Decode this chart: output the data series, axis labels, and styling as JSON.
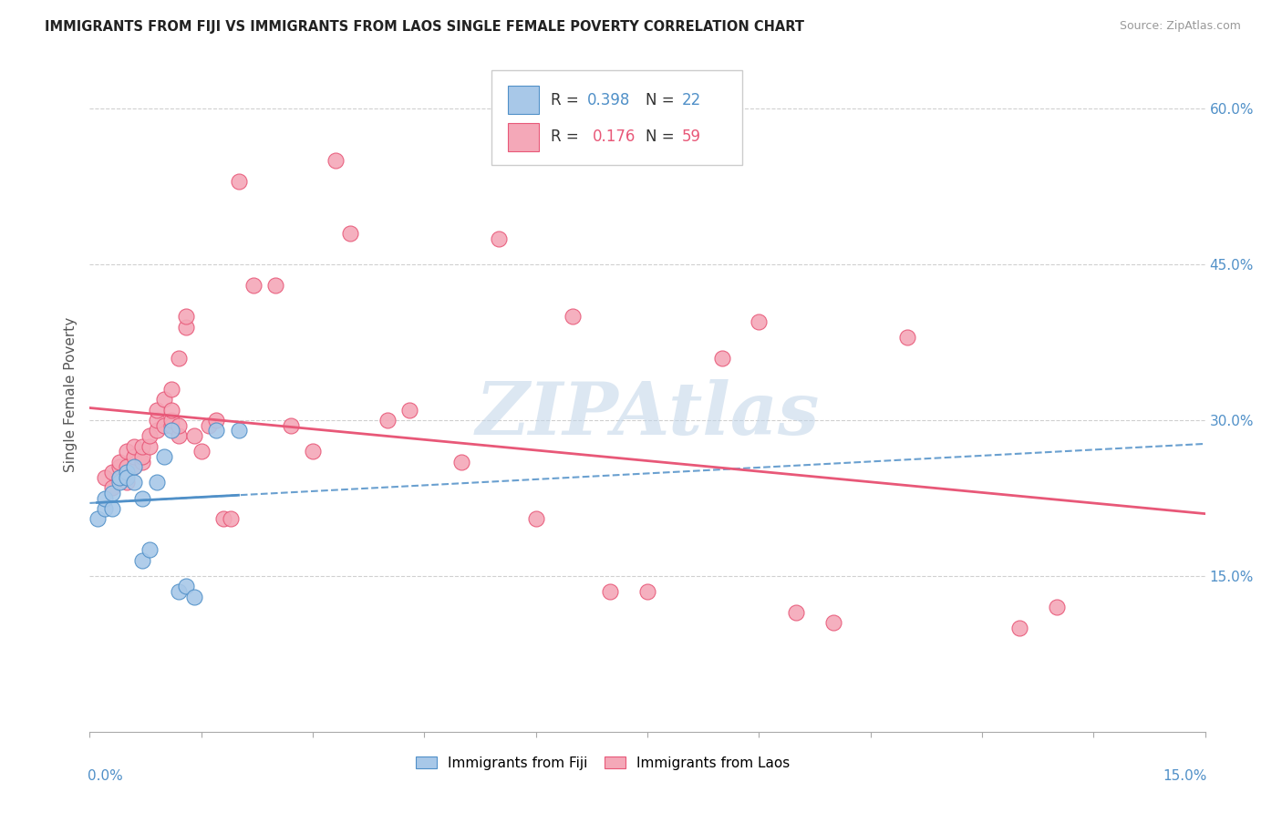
{
  "title": "IMMIGRANTS FROM FIJI VS IMMIGRANTS FROM LAOS SINGLE FEMALE POVERTY CORRELATION CHART",
  "source": "Source: ZipAtlas.com",
  "ylabel": "Single Female Poverty",
  "right_yticks": [
    "15.0%",
    "30.0%",
    "45.0%",
    "60.0%"
  ],
  "right_ytick_vals": [
    0.15,
    0.3,
    0.45,
    0.6
  ],
  "xmin": 0.0,
  "xmax": 0.15,
  "ymin": 0.0,
  "ymax": 0.65,
  "fiji_R": 0.398,
  "fiji_N": 22,
  "laos_R": 0.176,
  "laos_N": 59,
  "fiji_color": "#a8c8e8",
  "laos_color": "#f4a8b8",
  "fiji_line_color": "#5090c8",
  "laos_line_color": "#e85878",
  "watermark": "ZIPAtlas",
  "watermark_color": "#c0d4e8",
  "fiji_points_x": [
    0.001,
    0.002,
    0.002,
    0.003,
    0.003,
    0.004,
    0.004,
    0.005,
    0.005,
    0.006,
    0.006,
    0.007,
    0.007,
    0.008,
    0.009,
    0.01,
    0.011,
    0.012,
    0.013,
    0.014,
    0.017,
    0.02
  ],
  "fiji_points_y": [
    0.205,
    0.215,
    0.225,
    0.215,
    0.23,
    0.24,
    0.245,
    0.25,
    0.245,
    0.24,
    0.255,
    0.225,
    0.165,
    0.175,
    0.24,
    0.265,
    0.29,
    0.135,
    0.14,
    0.13,
    0.29,
    0.29
  ],
  "laos_points_x": [
    0.002,
    0.003,
    0.003,
    0.004,
    0.004,
    0.004,
    0.005,
    0.005,
    0.005,
    0.006,
    0.006,
    0.006,
    0.007,
    0.007,
    0.007,
    0.008,
    0.008,
    0.009,
    0.009,
    0.009,
    0.01,
    0.01,
    0.011,
    0.011,
    0.011,
    0.011,
    0.012,
    0.012,
    0.012,
    0.013,
    0.013,
    0.014,
    0.015,
    0.016,
    0.017,
    0.018,
    0.019,
    0.02,
    0.022,
    0.025,
    0.027,
    0.03,
    0.033,
    0.035,
    0.04,
    0.043,
    0.05,
    0.055,
    0.06,
    0.065,
    0.07,
    0.075,
    0.085,
    0.09,
    0.095,
    0.1,
    0.11,
    0.125,
    0.13
  ],
  "laos_points_y": [
    0.245,
    0.235,
    0.25,
    0.245,
    0.255,
    0.26,
    0.24,
    0.255,
    0.27,
    0.255,
    0.265,
    0.275,
    0.26,
    0.265,
    0.275,
    0.275,
    0.285,
    0.29,
    0.3,
    0.31,
    0.295,
    0.32,
    0.295,
    0.3,
    0.31,
    0.33,
    0.285,
    0.295,
    0.36,
    0.39,
    0.4,
    0.285,
    0.27,
    0.295,
    0.3,
    0.205,
    0.205,
    0.53,
    0.43,
    0.43,
    0.295,
    0.27,
    0.55,
    0.48,
    0.3,
    0.31,
    0.26,
    0.475,
    0.205,
    0.4,
    0.135,
    0.135,
    0.36,
    0.395,
    0.115,
    0.105,
    0.38,
    0.1,
    0.12
  ],
  "grid_yticks": [
    0.15,
    0.3,
    0.45,
    0.6
  ]
}
